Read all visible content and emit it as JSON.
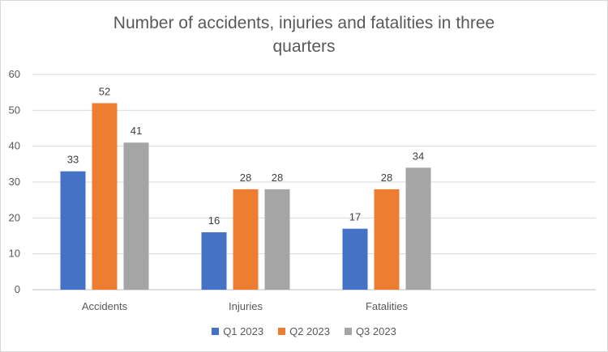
{
  "chart_data": {
    "type": "bar",
    "title": "Number of accidents, injuries and fatalities in three quarters",
    "categories": [
      "Accidents",
      "Injuries",
      "Fatalities"
    ],
    "series": [
      {
        "name": "Q1 2023",
        "values": [
          33,
          16,
          17
        ],
        "color": "#4472c4"
      },
      {
        "name": "Q2 2023",
        "values": [
          52,
          28,
          28
        ],
        "color": "#ed7d31"
      },
      {
        "name": "Q3 2023",
        "values": [
          41,
          28,
          34
        ],
        "color": "#a5a5a5"
      }
    ],
    "ylim": [
      0,
      60
    ],
    "yticks": [
      0,
      10,
      20,
      30,
      40,
      50,
      60
    ],
    "grid": true,
    "legend_position": "bottom",
    "data_labels": true
  }
}
